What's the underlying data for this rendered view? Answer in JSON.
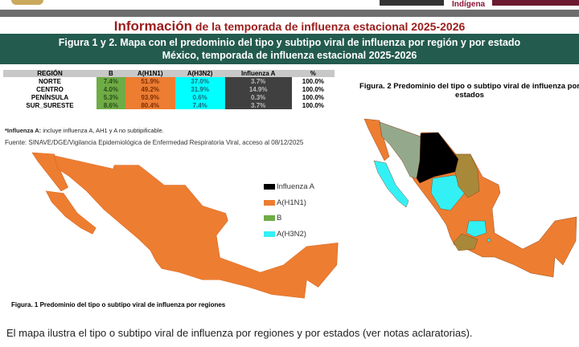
{
  "header": {
    "logo_text": "Indígena",
    "title_big": "Información",
    "title_rest": " de la temporada de influenza estacional 2025-2026"
  },
  "banner": {
    "line1": "Figura 1 y 2. Mapa con el predominio del tipo y subtipo viral de influenza por región y por estado",
    "line2": "México, temporada de influenza estacional 2025-2026"
  },
  "table": {
    "headers": [
      "REGIÓN",
      "B",
      "A(H1N1)",
      "A(H3N2)",
      "Influenza A",
      "%"
    ],
    "rows": [
      [
        "NORTE",
        "7.4%",
        "51.9%",
        "37.0%",
        "3.7%",
        "100.0%"
      ],
      [
        "CENTRO",
        "4.0%",
        "49.2%",
        "31.9%",
        "14.9%",
        "100.0%"
      ],
      [
        "PENÍNSULA",
        "5.3%",
        "93.9%",
        "0.6%",
        "0.3%",
        "100.0%"
      ],
      [
        "SUR_SURESTE",
        "8.6%",
        "80.4%",
        "7.4%",
        "3.7%",
        "100.0%"
      ]
    ]
  },
  "note_bold": "*Influenza A:",
  "note_rest": " incluye influenza A, AH1 y A no subtipificable.",
  "source": "Fuente: SINAVE/DGE/Vigilancia Epidemiológica de Enfermedad Respiratoria Viral, acceso al 08/12/2025",
  "legend": [
    {
      "label": "Influenza A",
      "color": "#000000"
    },
    {
      "label": "A(H1N1)",
      "color": "#ed7d31"
    },
    {
      "label": "B",
      "color": "#6fac46"
    },
    {
      "label": "A(H3N2)",
      "color": "#33f0f5"
    }
  ],
  "figure1_caption": "Figura. 1 Predominio del tipo o subtipo viral de influenza por regiones",
  "figure2_caption": "Figura. 2 Predominio del tipo o subtipo viral de influenza por estados",
  "description": "El mapa ilustra el tipo o subtipo viral de influenza por regiones y por estados (ver notas aclaratorias).",
  "map_colors": {
    "other": "#a8893a",
    "sonora": "#94a98c"
  }
}
